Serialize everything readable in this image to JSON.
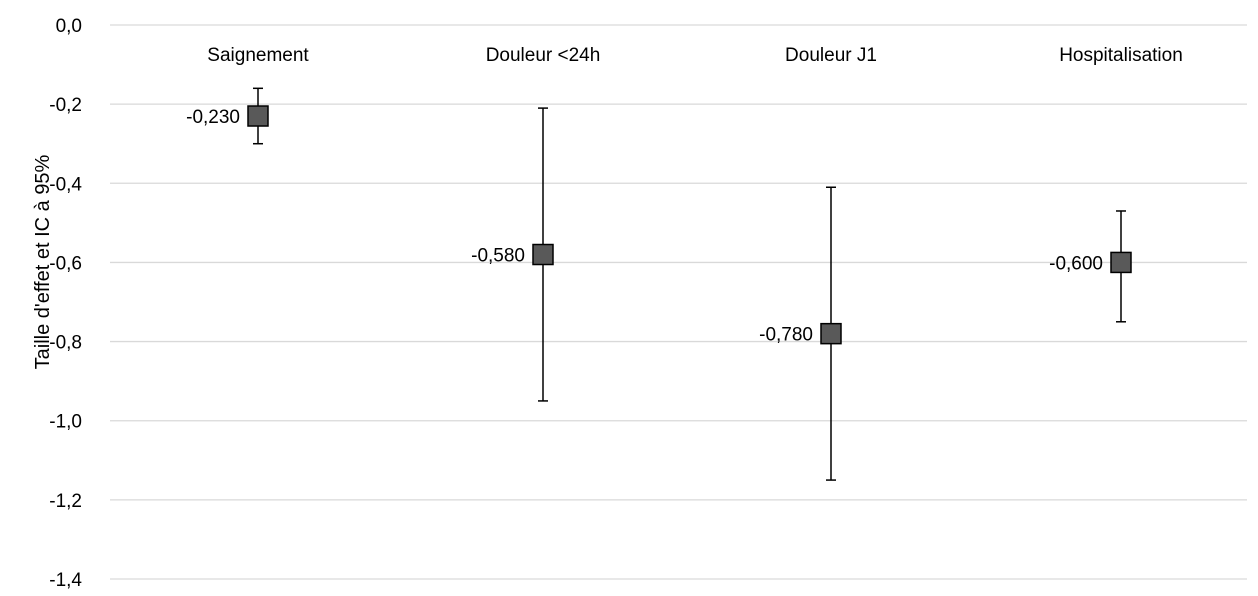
{
  "chart_data": {
    "type": "scatter",
    "title": "",
    "xlabel": "",
    "ylabel": "Taille d'effet et IC à 95%",
    "ylim": [
      -1.4,
      0.0
    ],
    "yticks": [
      0.0,
      -0.2,
      -0.4,
      -0.6,
      -0.8,
      -1.0,
      -1.2,
      -1.4
    ],
    "ytick_labels": [
      "0,0",
      "-0,2",
      "-0,4",
      "-0,6",
      "-0,8",
      "-1,0",
      "-1,2",
      "-1,4"
    ],
    "grid": true,
    "categories": [
      "Saignement",
      "Douleur <24h",
      "Douleur J1",
      "Hospitalisation"
    ],
    "values": [
      -0.23,
      -0.58,
      -0.78,
      -0.6
    ],
    "value_labels": [
      "-0,230",
      "-0,580",
      "-0,780",
      "-0,600"
    ],
    "ci_lower": [
      -0.3,
      -0.95,
      -1.15,
      -0.75
    ],
    "ci_upper": [
      -0.16,
      -0.21,
      -0.41,
      -0.47
    ],
    "marker": "square",
    "colors": {
      "marker_fill": "#595959",
      "marker_stroke": "#000000",
      "gridline": "#d9d9d9",
      "errorbar": "#000000"
    }
  }
}
